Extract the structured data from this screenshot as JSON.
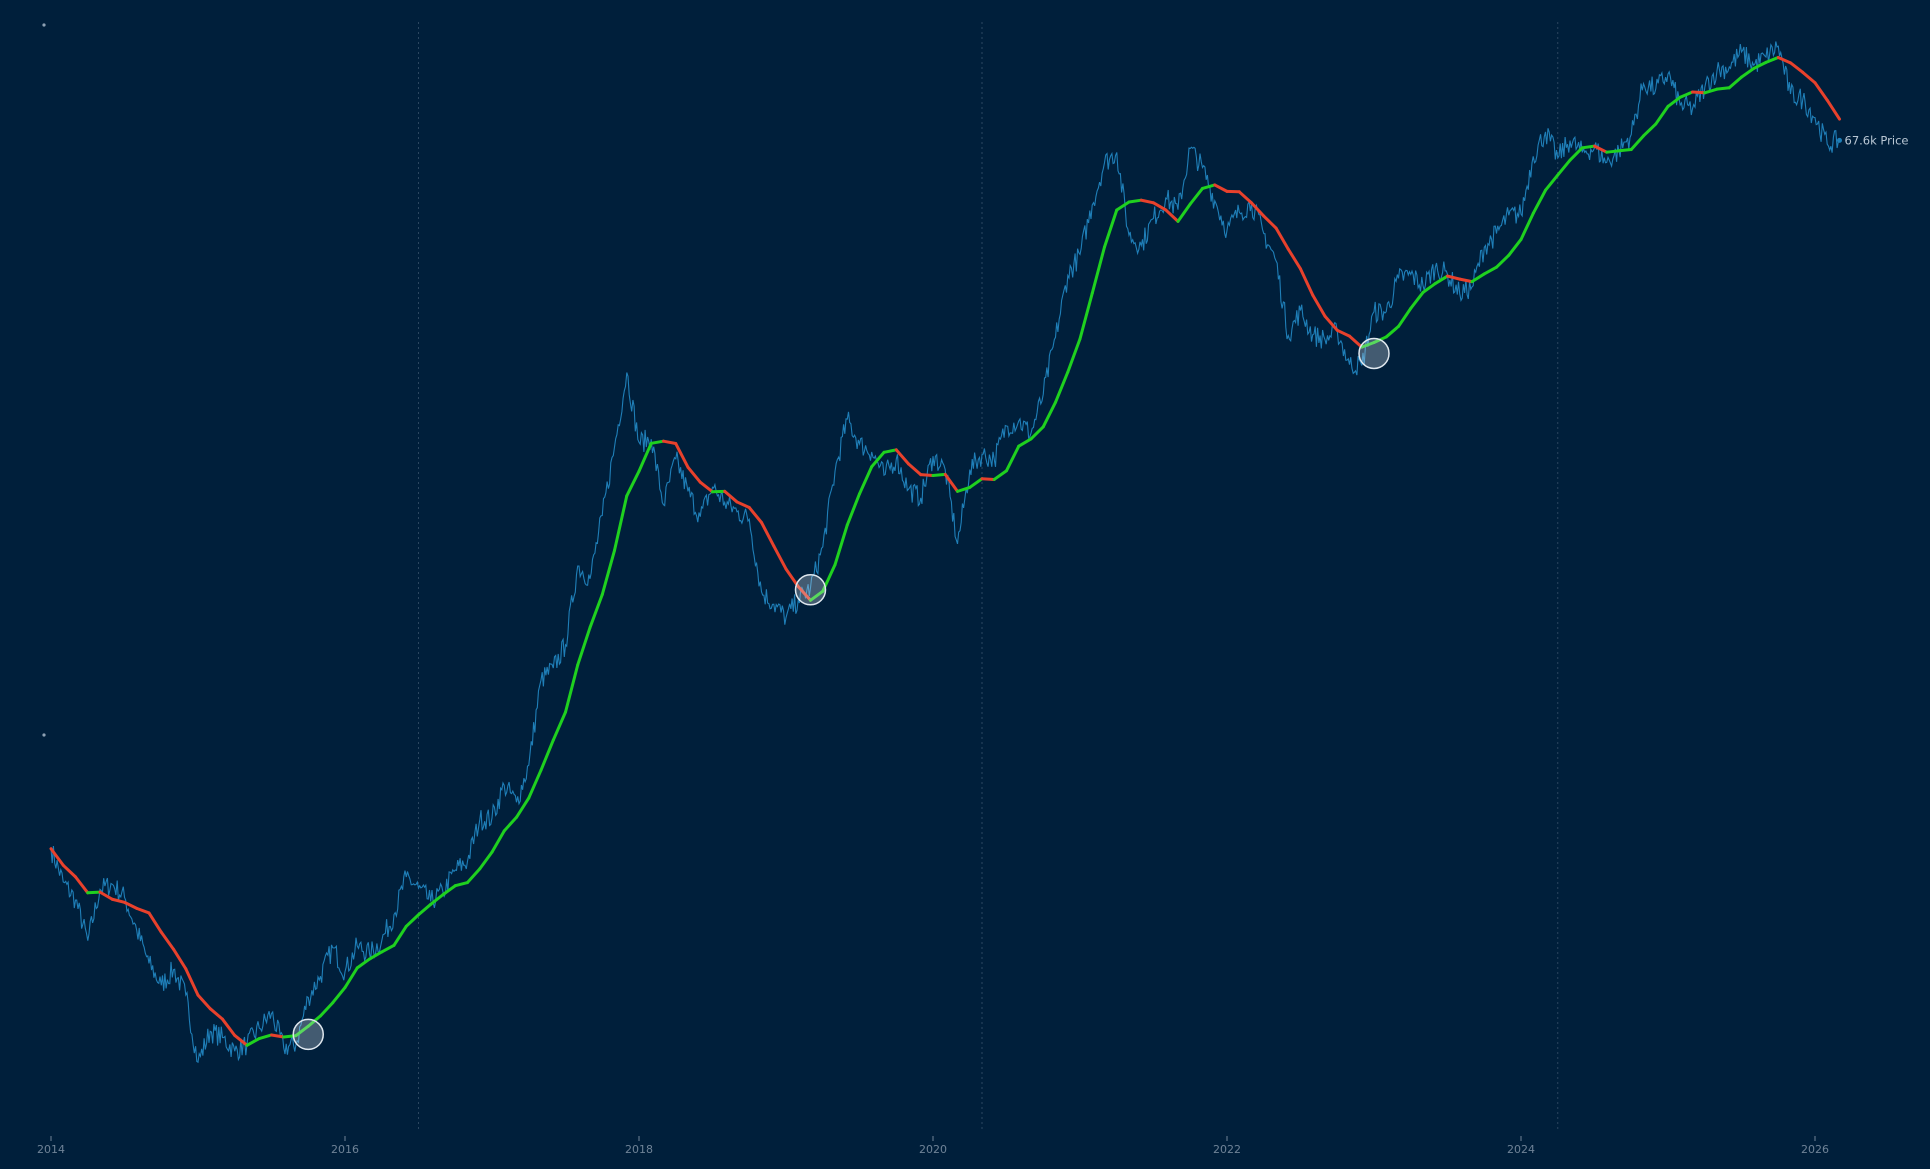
{
  "chart_data": {
    "type": "line",
    "title": "",
    "xlabel": "",
    "ylabel": "",
    "y_scale": "log",
    "grid": false,
    "legend": "none",
    "x_ticks": [
      "2014",
      "2016",
      "2018",
      "2020",
      "2022",
      "2024",
      "2026"
    ],
    "xlim": [
      "2013-12",
      "2026-05"
    ],
    "ylim": [
      150,
      140000
    ],
    "last_price_label": "67.6k Price",
    "colors": {
      "background": "#001f3b",
      "price": "#1f7fb8",
      "ma_up": "#1fd11f",
      "ma_down": "#e8412c",
      "marker": "#dfe7ee",
      "halving_line": "#2c4760"
    },
    "halving_dates": [
      "2016-07",
      "2020-05",
      "2024-04"
    ],
    "cycle_bottom_markers": [
      {
        "date": "2015-10",
        "price": 250
      },
      {
        "date": "2019-03",
        "price": 4050
      },
      {
        "date": "2023-01",
        "price": 17800
      }
    ],
    "series": [
      {
        "start": "2014-01",
        "interval": "month",
        "values": [
          800,
          650,
          580,
          450,
          620,
          640,
          590,
          480,
          390,
          340,
          375,
          320,
          210,
          255,
          245,
          225,
          235,
          260,
          285,
          230,
          235,
          315,
          360,
          430,
          370,
          435,
          415,
          450,
          530,
          670,
          625,
          575,
          610,
          700,
          740,
          960,
          970,
          1190,
          1070,
          1350,
          2300,
          2480,
          2870,
          4700,
          4340,
          6450,
          9900,
          15800,
          10200,
          10400,
          6900,
          9200,
          7500,
          6400,
          7700,
          7000,
          6600,
          6300,
          4000,
          3700,
          3400,
          3800,
          4100,
          5300,
          8500,
          11800,
          10100,
          9600,
          8300,
          9200,
          7600,
          7200,
          9350,
          8600,
          5400,
          8600,
          9450,
          9150,
          11300,
          11650,
          10800,
          13800,
          19700,
          29000,
          33100,
          45100,
          58800,
          62700,
          37300,
          35000,
          41500,
          47100,
          43800,
          64300,
          57000,
          46300,
          38500,
          43200,
          45500,
          37700,
          31800,
          19900,
          23300,
          20000,
          19400,
          20500,
          16600,
          16500,
          23100,
          23100,
          28500,
          29200,
          27200,
          30500,
          29200,
          25900,
          27000,
          34600,
          37700,
          42300,
          42600,
          61200,
          71300,
          60600,
          67500,
          62700,
          64600,
          58900,
          63300,
          70200,
          96400,
          93400,
          102400,
          84400,
          82500,
          94200,
          104600,
          107100,
          117700,
          108200,
          114000,
          122000,
          90400,
          87500,
          78000,
          66000,
          67600
        ]
      }
    ]
  }
}
